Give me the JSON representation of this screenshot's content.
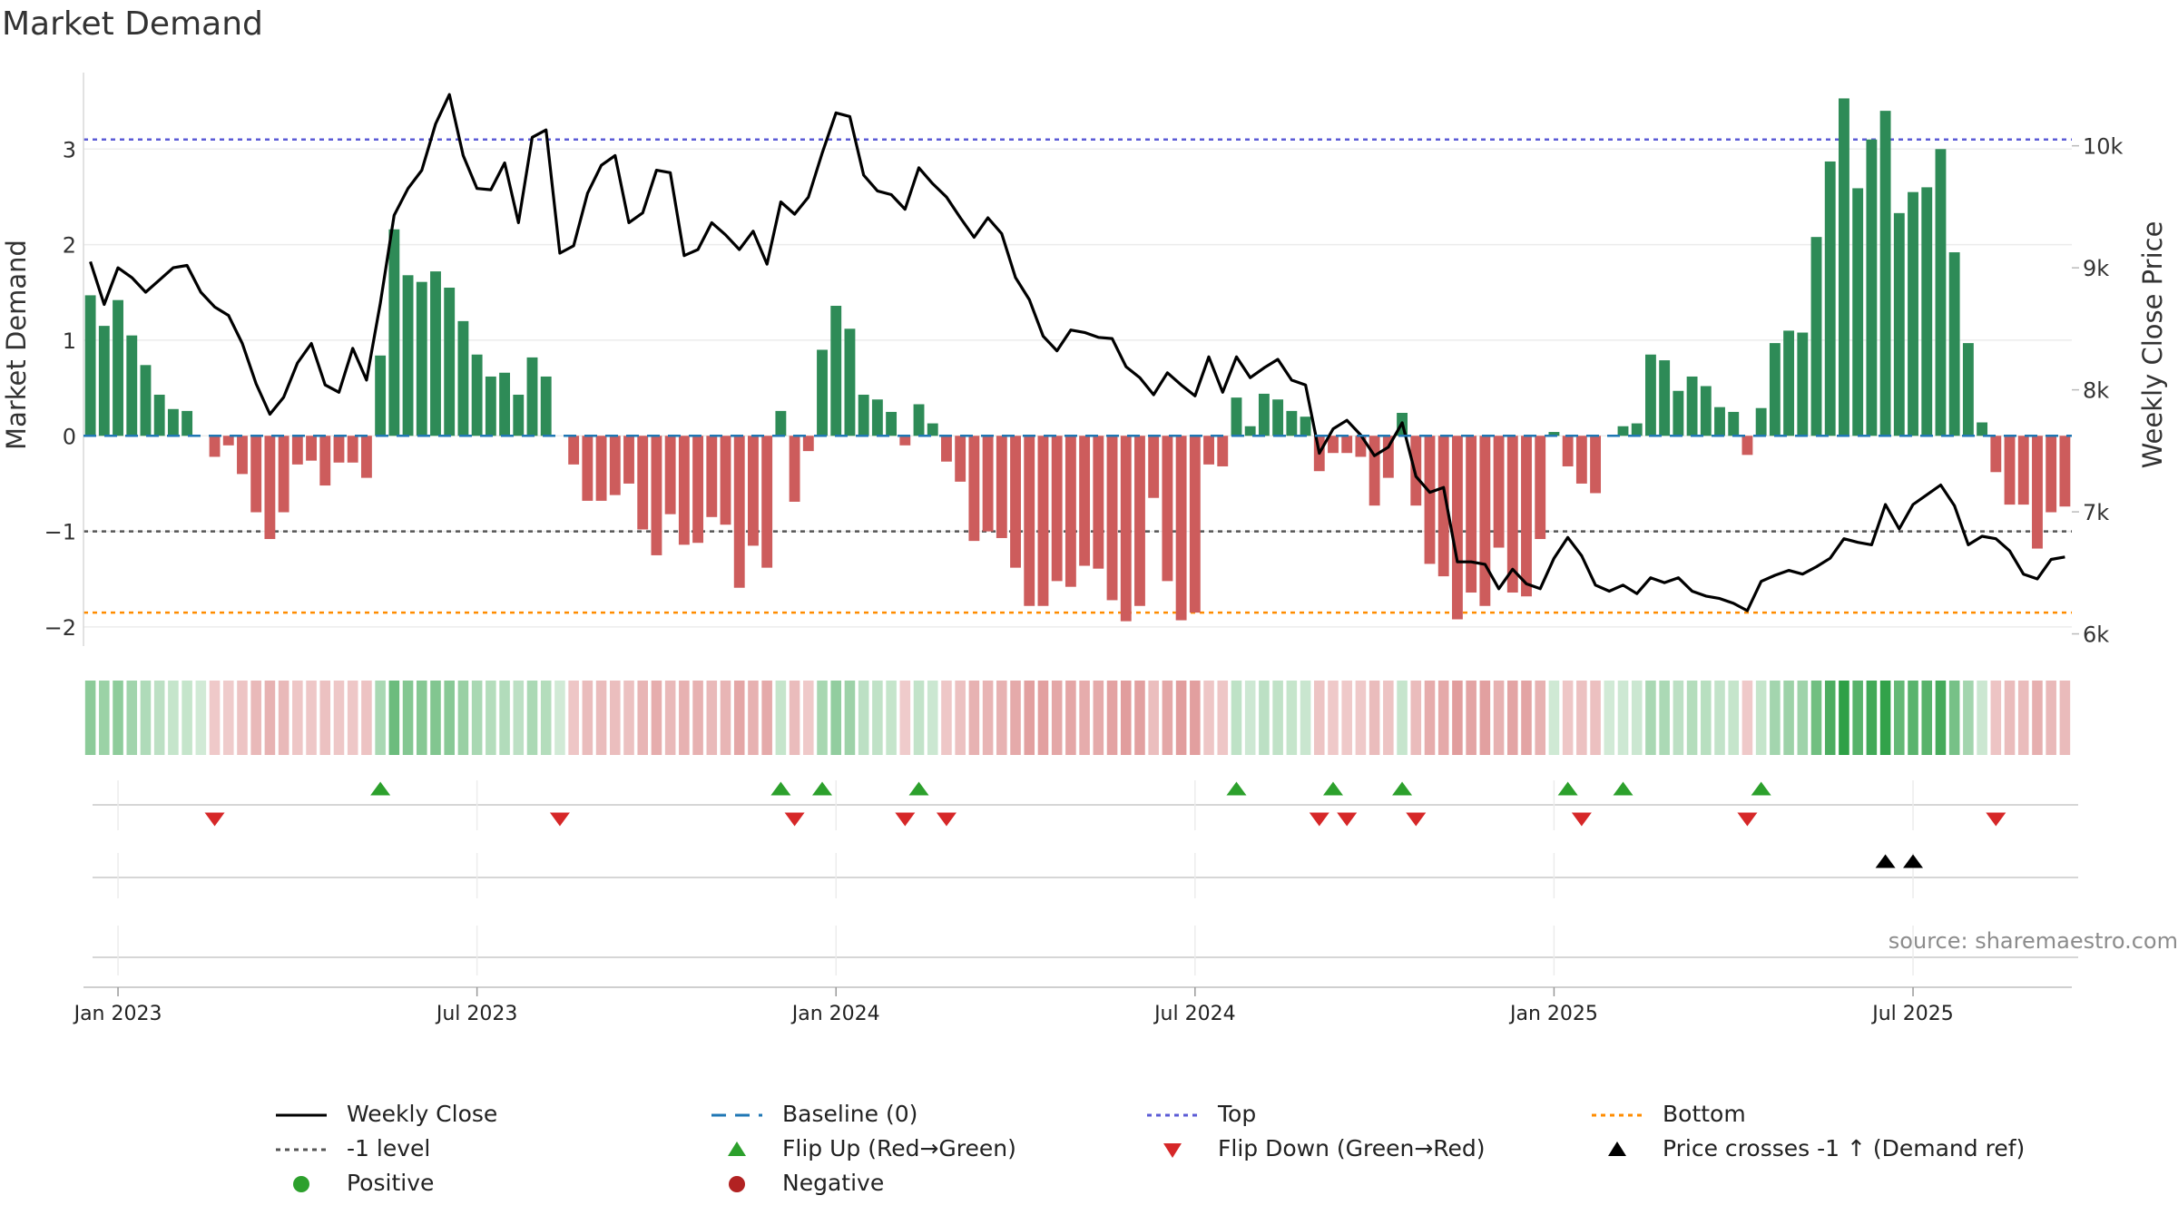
{
  "title": "Market Demand",
  "source": "source: sharemaestro.com",
  "legend": {
    "weekly_close": "Weekly Close",
    "baseline": "Baseline (0)",
    "top": "Top",
    "bottom": "Bottom",
    "minus1": "-1 level",
    "flip_up": "Flip Up (Red→Green)",
    "flip_down": "Flip Down (Green→Red)",
    "price_cross": "Price crosses -1 ↑ (Demand ref)",
    "positive": "Positive",
    "negative": "Negative"
  },
  "colors": {
    "positive": "#2e8b57",
    "negative": "#cd5c5c",
    "price": "#000000",
    "top": "#5b5bd6",
    "bottom": "#ff8c00",
    "minus1": "#555555",
    "baseline": "#1f77b4",
    "flip_up": "#2ca02c",
    "flip_down": "#d62728",
    "cross": "#000000",
    "positive_dot": "#2ca02c",
    "negative_dot": "#b22222"
  },
  "chart_data": {
    "type": "bar",
    "title": "Market Demand",
    "xlabel": "",
    "ylabel": "Market Demand",
    "y2label": "Weekly Close Price",
    "ylim": [
      -2.2,
      3.8
    ],
    "y2lim": [
      5900,
      10600
    ],
    "grid": true,
    "yticks": [
      -2,
      -1,
      0,
      1,
      2,
      3
    ],
    "ytick_labels": [
      "−2",
      "−1",
      "0",
      "1",
      "2",
      "3"
    ],
    "y2ticks": [
      6000,
      7000,
      8000,
      9000,
      10000
    ],
    "y2tick_labels": [
      "6k",
      "7k",
      "8k",
      "9k",
      "10k"
    ],
    "x_ticks": [
      {
        "week": 2,
        "label": "Jan 2023"
      },
      {
        "week": 28,
        "label": "Jul 2023"
      },
      {
        "week": 54,
        "label": "Jan 2024"
      },
      {
        "week": 80,
        "label": "Jul 2024"
      },
      {
        "week": 106,
        "label": "Jan 2025"
      },
      {
        "week": 132,
        "label": "Jul 2025"
      }
    ],
    "reference_lines": {
      "top": 3.1,
      "minus1": -1,
      "bottom": -1.85,
      "baseline": 0
    },
    "demand": [
      1.47,
      1.15,
      1.42,
      1.05,
      0.74,
      0.43,
      0.28,
      0.26,
      0,
      -0.22,
      -0.1,
      -0.4,
      -0.8,
      -1.08,
      -0.8,
      -0.3,
      -0.26,
      -0.52,
      -0.28,
      -0.28,
      -0.44,
      0.84,
      2.16,
      1.68,
      1.61,
      1.72,
      1.55,
      1.2,
      0.85,
      0.62,
      0.66,
      0.43,
      0.82,
      0.62,
      0,
      -0.3,
      -0.68,
      -0.68,
      -0.62,
      -0.5,
      -0.98,
      -1.25,
      -0.82,
      -1.14,
      -1.12,
      -0.85,
      -0.93,
      -1.59,
      -1.15,
      -1.38,
      0.26,
      -0.69,
      -0.16,
      0.9,
      1.36,
      1.12,
      0.43,
      0.38,
      0.25,
      -0.1,
      0.33,
      0.13,
      -0.27,
      -0.48,
      -1.1,
      -1.0,
      -1.07,
      -1.38,
      -1.78,
      -1.78,
      -1.52,
      -1.58,
      -1.36,
      -1.39,
      -1.72,
      -1.94,
      -1.78,
      -0.65,
      -1.52,
      -1.93,
      -1.85,
      -0.3,
      -0.32,
      0.4,
      0.1,
      0.44,
      0.38,
      0.26,
      0.2,
      -0.37,
      -0.18,
      -0.18,
      -0.22,
      -0.73,
      -0.44,
      0.24,
      -0.73,
      -1.34,
      -1.47,
      -1.92,
      -1.64,
      -1.78,
      -1.17,
      -1.64,
      -1.68,
      -1.08,
      0.04,
      -0.32,
      -0.5,
      -0.6,
      0,
      0.1,
      0.13,
      0.85,
      0.79,
      0.47,
      0.62,
      0.52,
      0.3,
      0.25,
      -0.2,
      0.29,
      0.97,
      1.1,
      1.08,
      2.08,
      2.87,
      3.53,
      2.59,
      3.1,
      3.4,
      2.33,
      2.55,
      2.6,
      3.0,
      1.92,
      0.97,
      0.14,
      -0.38,
      -0.72,
      -0.72,
      -1.18,
      -0.8,
      -0.74
    ],
    "price": [
      9050,
      8700,
      9000,
      8920,
      8800,
      8900,
      9000,
      9020,
      8800,
      8680,
      8610,
      8380,
      8050,
      7800,
      7940,
      8220,
      8380,
      8040,
      7980,
      8340,
      8080,
      8710,
      9430,
      9650,
      9800,
      10180,
      10420,
      9920,
      9650,
      9640,
      9860,
      9370,
      10070,
      10130,
      9120,
      9180,
      9610,
      9840,
      9920,
      9370,
      9450,
      9800,
      9780,
      9100,
      9150,
      9370,
      9270,
      9150,
      9300,
      9030,
      9540,
      9440,
      9580,
      9940,
      10270,
      10240,
      9760,
      9630,
      9600,
      9480,
      9820,
      9690,
      9580,
      9410,
      9250,
      9410,
      9280,
      8920,
      8740,
      8440,
      8320,
      8490,
      8470,
      8430,
      8420,
      8190,
      8100,
      7960,
      8140,
      8040,
      7950,
      8270,
      7980,
      8270,
      8100,
      8180,
      8250,
      8080,
      8040,
      7480,
      7680,
      7750,
      7630,
      7460,
      7530,
      7730,
      7290,
      7160,
      7200,
      6590,
      6590,
      6570,
      6370,
      6530,
      6410,
      6370,
      6620,
      6790,
      6640,
      6400,
      6350,
      6400,
      6330,
      6460,
      6420,
      6460,
      6350,
      6310,
      6290,
      6250,
      6190,
      6430,
      6480,
      6520,
      6490,
      6550,
      6620,
      6780,
      6750,
      6730,
      7060,
      6860,
      7060,
      7140,
      7220,
      7050,
      6730,
      6800,
      6780,
      6680,
      6490,
      6450,
      6610,
      6630
    ]
  },
  "flip_up_weeks": [
    21,
    50,
    53,
    60,
    83,
    90,
    95,
    107,
    111,
    121
  ],
  "flip_down_weeks": [
    9,
    34,
    51,
    59,
    62,
    89,
    91,
    96,
    108,
    120,
    138
  ],
  "price_cross_weeks": [
    130,
    132
  ],
  "marker_rows": [
    "flips",
    "crosses",
    "empty"
  ]
}
